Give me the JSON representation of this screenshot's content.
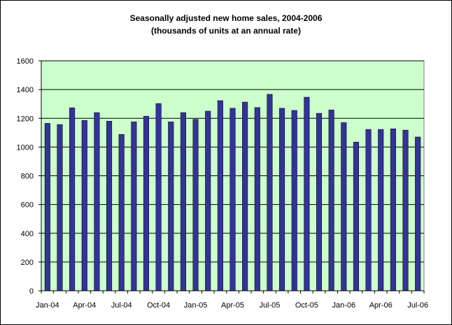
{
  "chart_data": {
    "type": "bar",
    "title_lines": [
      "Seasonally adjusted new home sales, 2004-2006",
      "(thousands of units at an annual rate)"
    ],
    "xlabel": "",
    "ylabel": "",
    "ylim": [
      0,
      1600
    ],
    "yticks": [
      0,
      200,
      400,
      600,
      800,
      1000,
      1200,
      1400,
      1600
    ],
    "categories": [
      "Jan-04",
      "Feb-04",
      "Mar-04",
      "Apr-04",
      "May-04",
      "Jun-04",
      "Jul-04",
      "Aug-04",
      "Sep-04",
      "Oct-04",
      "Nov-04",
      "Dec-04",
      "Jan-05",
      "Feb-05",
      "Mar-05",
      "Apr-05",
      "May-05",
      "Jun-05",
      "Jul-05",
      "Aug-05",
      "Sep-05",
      "Oct-05",
      "Nov-05",
      "Dec-05",
      "Jan-06",
      "Feb-06",
      "Mar-06",
      "Apr-06",
      "May-06",
      "Jun-06",
      "Jul-06"
    ],
    "labeled_categories": [
      "Jan-04",
      "Apr-04",
      "Jul-04",
      "Oct-04",
      "Jan-05",
      "Apr-05",
      "Jul-05",
      "Oct-05",
      "Jan-06",
      "Apr-06",
      "Jul-06"
    ],
    "values": [
      1165,
      1157,
      1273,
      1185,
      1240,
      1180,
      1088,
      1175,
      1215,
      1303,
      1175,
      1240,
      1193,
      1250,
      1323,
      1270,
      1313,
      1275,
      1367,
      1270,
      1255,
      1347,
      1235,
      1258,
      1170,
      1035,
      1123,
      1123,
      1127,
      1118,
      1070
    ],
    "grid": true,
    "legend": "none",
    "colors": {
      "plot_background": "#ccffcc",
      "bar_fill": "#333399",
      "bar_stroke": "#000000",
      "gridline": "#000000"
    }
  }
}
